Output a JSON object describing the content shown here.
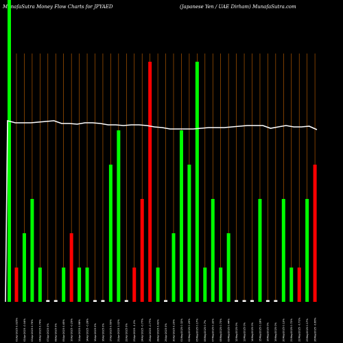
{
  "header": {
    "left_title": "MunafaSutra  Money Flow  Charts for JPYAED",
    "right_title": "(Japanese   Yen  /  UAE Dirham) MunafaSutra.com"
  },
  "colors": {
    "background": "#000000",
    "up_bar": "#00ff00",
    "down_bar": "#ff0000",
    "flat_bar": "#ffffff",
    "grid_line": "#cc6600",
    "price_line": "#ffffff"
  },
  "chart_data": {
    "type": "bar",
    "ylim": [
      0,
      7
    ],
    "bars": [
      {
        "x": "01Apr2025 0.025%",
        "v": 1,
        "c": "down"
      },
      {
        "x": "02Apr2025 -0.04%",
        "v": 2,
        "c": "up"
      },
      {
        "x": "03Apr2025 0.76%",
        "v": 3,
        "c": "up"
      },
      {
        "x": "04Apr2025 0.74%",
        "v": 1,
        "c": "up"
      },
      {
        "x": "07Apr2025 0%",
        "v": 0.05,
        "c": "flat"
      },
      {
        "x": "08Apr2025 0%",
        "v": 0.05,
        "c": "flat"
      },
      {
        "x": "09Apr2025 0.45%",
        "v": 1,
        "c": "up"
      },
      {
        "x": "10Apr2025 -0.29%",
        "v": 2,
        "c": "down"
      },
      {
        "x": "11Apr2025 0.88%",
        "v": 1,
        "c": "up"
      },
      {
        "x": "14Apr2025 -0.28%",
        "v": 1,
        "c": "up"
      },
      {
        "x": "15Apr2025 0%",
        "v": 0.05,
        "c": "flat"
      },
      {
        "x": "16Apr2025 0%",
        "v": 0.05,
        "c": "flat"
      },
      {
        "x": "17Apr2025 0.69%",
        "v": 4,
        "c": "up"
      },
      {
        "x": "21Apr2025 1.02%",
        "v": 5,
        "c": "up"
      },
      {
        "x": "22Apr2025 0%",
        "v": 0.05,
        "c": "flat"
      },
      {
        "x": "23Apr2025 -1.2%",
        "v": 1,
        "c": "down"
      },
      {
        "x": "24Apr2025 -0.77%",
        "v": 3,
        "c": "down"
      },
      {
        "x": "25Apr2025 -0.77%",
        "v": 7,
        "c": "down"
      },
      {
        "x": "28Apr2025 0.43%",
        "v": 1,
        "c": "up"
      },
      {
        "x": "29Apr2025 0%",
        "v": 0.05,
        "c": "flat"
      },
      {
        "x": "30Apr2025 0.29%",
        "v": 2,
        "c": "up"
      },
      {
        "x": "01May2025 0.32%",
        "v": 5,
        "c": "up"
      },
      {
        "x": "02May2025 0.29%",
        "v": 4,
        "c": "up"
      },
      {
        "x": "05May2025 0.17%",
        "v": 7,
        "c": "up"
      },
      {
        "x": "06May2025 0.7%",
        "v": 1,
        "c": "up"
      },
      {
        "x": "07May2025 0.32%",
        "v": 3,
        "c": "up"
      },
      {
        "x": "08May2025 0.73%",
        "v": 1,
        "c": "up"
      },
      {
        "x": "09May2025 0.44%",
        "v": 2,
        "c": "up"
      },
      {
        "x": "12May2025 0%",
        "v": 0.05,
        "c": "flat"
      },
      {
        "x": "13May2025 0%",
        "v": 0.05,
        "c": "flat"
      },
      {
        "x": "14May2025 0%",
        "v": 0.05,
        "c": "flat"
      },
      {
        "x": "15May2025 0.18%",
        "v": 3,
        "c": "up"
      },
      {
        "x": "16May2025 0%",
        "v": 0.05,
        "c": "flat"
      },
      {
        "x": "19May2025 0%",
        "v": 0.05,
        "c": "flat"
      },
      {
        "x": "20May2025 0.13%",
        "v": 3,
        "c": "up"
      },
      {
        "x": "21May2025 0.72%",
        "v": 1,
        "c": "up"
      },
      {
        "x": "22May2025 -0.71%",
        "v": 1,
        "c": "down"
      },
      {
        "x": "23May2025 0.17%",
        "v": 3,
        "c": "up"
      },
      {
        "x": "26May2025 -0.66%",
        "v": 4,
        "c": "down"
      }
    ],
    "price_line": [
      176,
      179,
      179,
      179,
      178,
      177,
      176,
      180,
      180,
      181,
      179,
      179,
      180,
      182,
      182,
      183,
      182,
      182,
      183,
      185,
      186,
      188,
      188,
      188,
      188,
      187,
      186,
      186,
      186,
      185,
      184,
      183,
      183,
      183,
      187,
      185,
      183,
      185,
      185,
      184,
      189
    ]
  }
}
